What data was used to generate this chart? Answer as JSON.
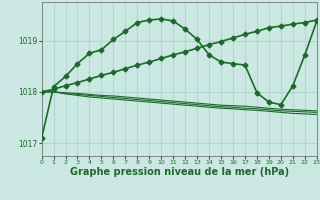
{
  "background_color": "#cce8e2",
  "grid_color": "#b0d8d0",
  "line_color": "#1a6b2a",
  "xlabel": "Graphe pression niveau de la mer (hPa)",
  "xlabel_fontsize": 7,
  "yticks": [
    1017,
    1018,
    1019
  ],
  "xlim": [
    0,
    23
  ],
  "ylim": [
    1016.75,
    1019.75
  ],
  "xticks": [
    0,
    1,
    2,
    3,
    4,
    5,
    6,
    7,
    8,
    9,
    10,
    11,
    12,
    13,
    14,
    15,
    16,
    17,
    18,
    19,
    20,
    21,
    22,
    23
  ],
  "series": [
    {
      "x": [
        0,
        1,
        2,
        3,
        4,
        5,
        6,
        7,
        8,
        9,
        10,
        11,
        12,
        13,
        14,
        15,
        16,
        17,
        18,
        19,
        20,
        21,
        22,
        23
      ],
      "y": [
        1018.0,
        1018.0,
        1017.98,
        1017.97,
        1017.95,
        1017.93,
        1017.92,
        1017.9,
        1017.88,
        1017.86,
        1017.84,
        1017.82,
        1017.8,
        1017.78,
        1017.76,
        1017.74,
        1017.73,
        1017.72,
        1017.7,
        1017.68,
        1017.66,
        1017.65,
        1017.64,
        1017.63
      ],
      "marker": null,
      "linewidth": 0.8,
      "zorder": 2
    },
    {
      "x": [
        0,
        1,
        2,
        3,
        4,
        5,
        6,
        7,
        8,
        9,
        10,
        11,
        12,
        13,
        14,
        15,
        16,
        17,
        18,
        19,
        20,
        21,
        22,
        23
      ],
      "y": [
        1018.0,
        1018.0,
        1017.97,
        1017.95,
        1017.93,
        1017.91,
        1017.89,
        1017.87,
        1017.85,
        1017.83,
        1017.81,
        1017.79,
        1017.77,
        1017.75,
        1017.73,
        1017.71,
        1017.7,
        1017.68,
        1017.67,
        1017.65,
        1017.63,
        1017.62,
        1017.61,
        1017.6
      ],
      "marker": null,
      "linewidth": 0.8,
      "zorder": 2
    },
    {
      "x": [
        0,
        1,
        2,
        3,
        4,
        5,
        6,
        7,
        8,
        9,
        10,
        11,
        12,
        13,
        14,
        15,
        16,
        17,
        18,
        19,
        20,
        21,
        22,
        23
      ],
      "y": [
        1018.0,
        1018.0,
        1017.96,
        1017.93,
        1017.9,
        1017.88,
        1017.86,
        1017.84,
        1017.82,
        1017.8,
        1017.78,
        1017.76,
        1017.74,
        1017.72,
        1017.7,
        1017.68,
        1017.67,
        1017.65,
        1017.64,
        1017.62,
        1017.6,
        1017.58,
        1017.57,
        1017.56
      ],
      "marker": null,
      "linewidth": 0.8,
      "zorder": 2
    },
    {
      "x": [
        0,
        1,
        2,
        3,
        4,
        5,
        6,
        7,
        8,
        9,
        10,
        11,
        12,
        13,
        14,
        15,
        16,
        17,
        18,
        19,
        20,
        21,
        22,
        23
      ],
      "y": [
        1017.1,
        1018.1,
        1018.3,
        1018.55,
        1018.75,
        1018.82,
        1019.02,
        1019.18,
        1019.35,
        1019.4,
        1019.42,
        1019.38,
        1019.22,
        1019.02,
        1018.72,
        1018.58,
        1018.55,
        1018.52,
        1017.98,
        1017.8,
        1017.75,
        1018.12,
        1018.72,
        1019.38
      ],
      "marker": "D",
      "markersize": 2.5,
      "linewidth": 1.2,
      "zorder": 5
    },
    {
      "x": [
        0,
        1,
        2,
        3,
        4,
        5,
        6,
        7,
        8,
        9,
        10,
        11,
        12,
        13,
        14,
        15,
        16,
        17,
        18,
        19,
        20,
        21,
        22,
        23
      ],
      "y": [
        1018.0,
        1018.05,
        1018.12,
        1018.18,
        1018.25,
        1018.32,
        1018.38,
        1018.45,
        1018.52,
        1018.58,
        1018.65,
        1018.72,
        1018.78,
        1018.85,
        1018.92,
        1018.98,
        1019.05,
        1019.12,
        1019.18,
        1019.25,
        1019.28,
        1019.32,
        1019.35,
        1019.4
      ],
      "marker": "D",
      "markersize": 2.5,
      "linewidth": 1.2,
      "zorder": 4
    }
  ]
}
